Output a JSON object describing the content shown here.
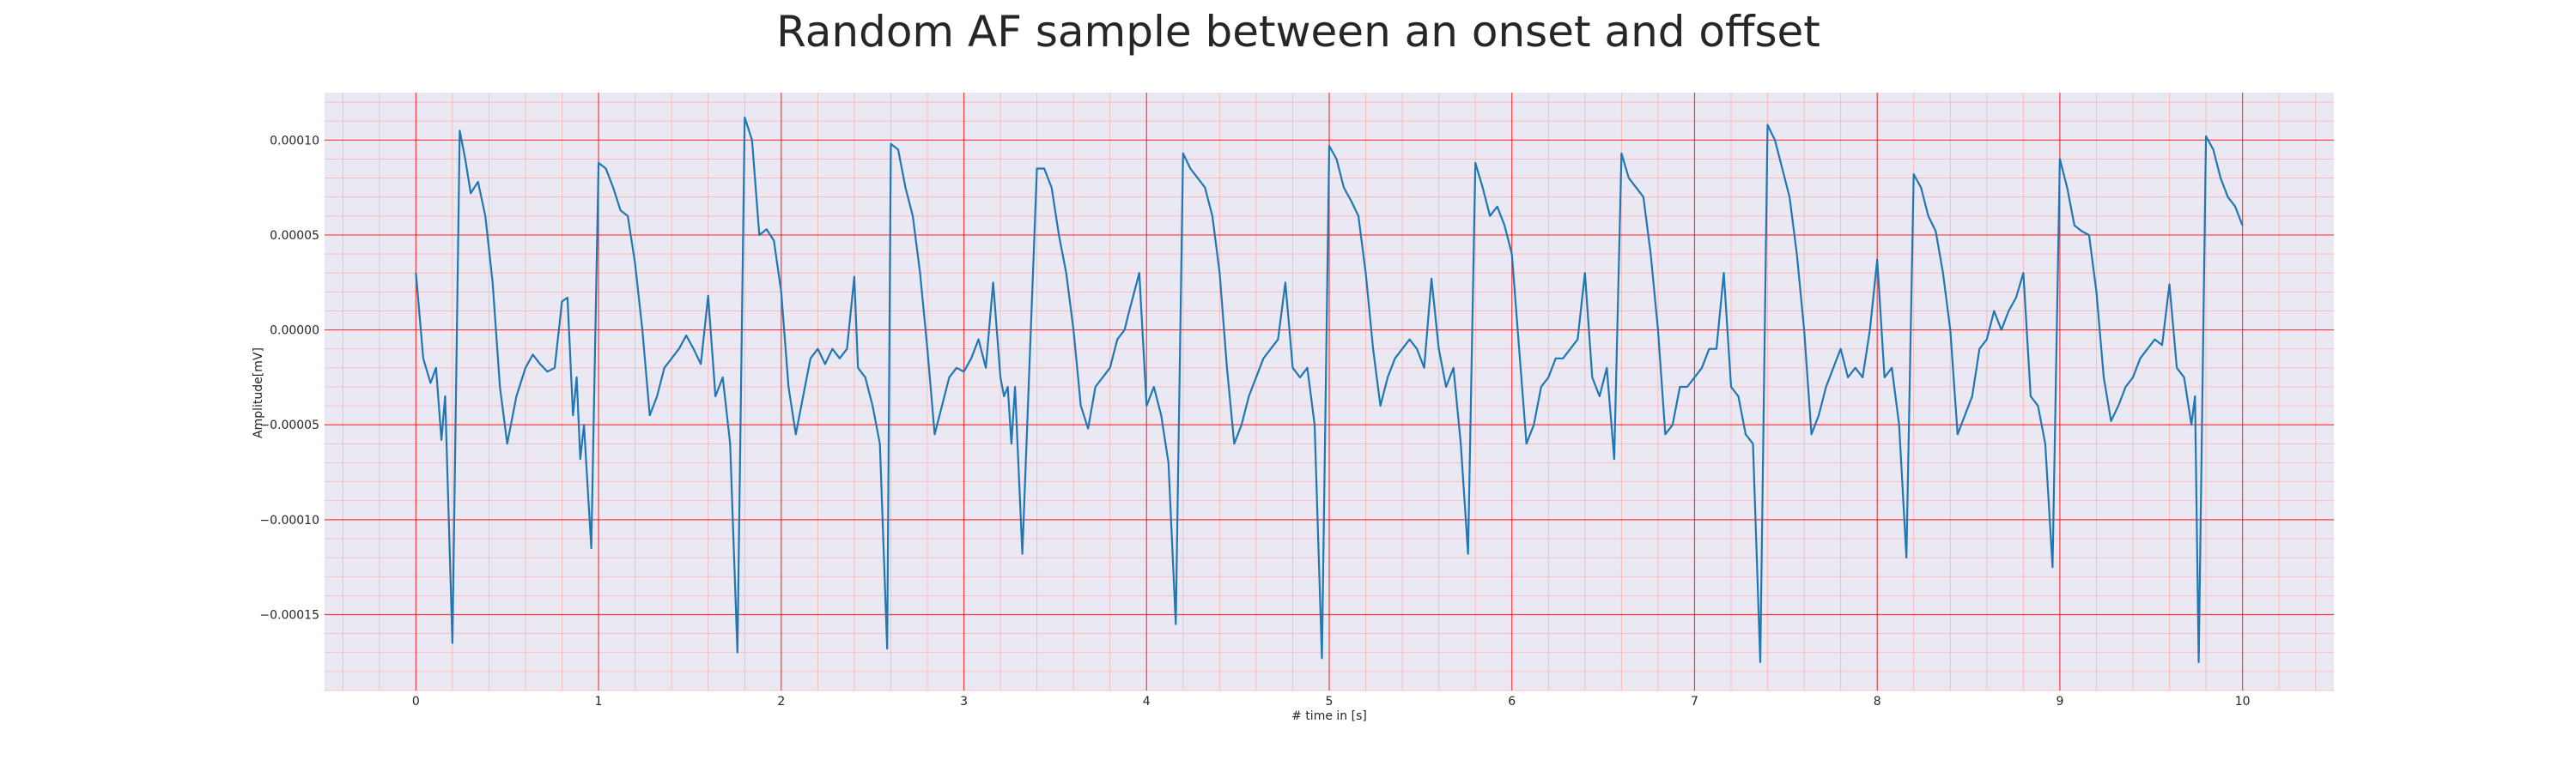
{
  "chart_data": {
    "type": "line",
    "title": "Random AF sample between an onset and offset",
    "xlabel": "# time in [s]",
    "ylabel": "Amplitude[mV]",
    "xlim": [
      -0.5,
      10.5
    ],
    "ylim": [
      -0.00019,
      0.000125
    ],
    "xticks": [
      0,
      1,
      2,
      3,
      4,
      5,
      6,
      7,
      8,
      9,
      10
    ],
    "xtick_labels": [
      "0",
      "1",
      "2",
      "3",
      "4",
      "5",
      "6",
      "7",
      "8",
      "9",
      "10"
    ],
    "yticks": [
      0.0001,
      5e-05,
      0,
      -5e-05,
      -0.0001,
      -0.00015
    ],
    "ytick_labels": [
      "0.00010",
      "0.00005",
      "0.00000",
      "−0.00005",
      "−0.00010",
      "−0.00015"
    ],
    "grid": true,
    "minor_grid": true,
    "colors": {
      "background": "#eae8f2",
      "major_grid": "#ff0000",
      "minor_grid": "#ffb3b3",
      "line": "#1f77b4"
    },
    "series": [
      {
        "points": [
          [
            0.0,
            3e-05
          ],
          [
            0.04,
            -1.5e-05
          ],
          [
            0.08,
            -2.8e-05
          ],
          [
            0.11,
            -2e-05
          ],
          [
            0.14,
            -5.8e-05
          ],
          [
            0.16,
            -3.5e-05
          ],
          [
            0.2,
            -0.000165
          ],
          [
            0.24,
            0.000105
          ],
          [
            0.27,
            9e-05
          ],
          [
            0.3,
            7.2e-05
          ],
          [
            0.34,
            7.8e-05
          ],
          [
            0.38,
            6e-05
          ],
          [
            0.42,
            2.5e-05
          ],
          [
            0.46,
            -3e-05
          ],
          [
            0.5,
            -6e-05
          ],
          [
            0.55,
            -3.5e-05
          ],
          [
            0.6,
            -2e-05
          ],
          [
            0.64,
            -1.3e-05
          ],
          [
            0.68,
            -1.8e-05
          ],
          [
            0.72,
            -2.2e-05
          ],
          [
            0.76,
            -2e-05
          ],
          [
            0.8,
            1.5e-05
          ],
          [
            0.83,
            1.7e-05
          ],
          [
            0.86,
            -4.5e-05
          ],
          [
            0.88,
            -2.5e-05
          ],
          [
            0.9,
            -6.8e-05
          ],
          [
            0.92,
            -5e-05
          ],
          [
            0.96,
            -0.000115
          ],
          [
            1.0,
            8.8e-05
          ],
          [
            1.04,
            8.5e-05
          ],
          [
            1.08,
            7.5e-05
          ],
          [
            1.12,
            6.3e-05
          ],
          [
            1.16,
            6e-05
          ],
          [
            1.2,
            3.5e-05
          ],
          [
            1.24,
            0.0
          ],
          [
            1.28,
            -4.5e-05
          ],
          [
            1.32,
            -3.5e-05
          ],
          [
            1.36,
            -2e-05
          ],
          [
            1.4,
            -1.5e-05
          ],
          [
            1.44,
            -1e-05
          ],
          [
            1.48,
            -3e-06
          ],
          [
            1.52,
            -1e-05
          ],
          [
            1.56,
            -1.8e-05
          ],
          [
            1.6,
            1.8e-05
          ],
          [
            1.64,
            -3.5e-05
          ],
          [
            1.68,
            -2.5e-05
          ],
          [
            1.72,
            -6e-05
          ],
          [
            1.76,
            -0.00017
          ],
          [
            1.8,
            0.000112
          ],
          [
            1.84,
            0.0001
          ],
          [
            1.88,
            5e-05
          ],
          [
            1.92,
            5.3e-05
          ],
          [
            1.96,
            4.7e-05
          ],
          [
            2.0,
            2e-05
          ],
          [
            2.04,
            -3e-05
          ],
          [
            2.08,
            -5.5e-05
          ],
          [
            2.12,
            -3.5e-05
          ],
          [
            2.16,
            -1.5e-05
          ],
          [
            2.2,
            -1e-05
          ],
          [
            2.24,
            -1.8e-05
          ],
          [
            2.28,
            -1e-05
          ],
          [
            2.32,
            -1.5e-05
          ],
          [
            2.36,
            -1e-05
          ],
          [
            2.4,
            2.8e-05
          ],
          [
            2.42,
            -2e-05
          ],
          [
            2.46,
            -2.5e-05
          ],
          [
            2.5,
            -4e-05
          ],
          [
            2.54,
            -6e-05
          ],
          [
            2.58,
            -0.000168
          ],
          [
            2.6,
            9.8e-05
          ],
          [
            2.64,
            9.5e-05
          ],
          [
            2.68,
            7.5e-05
          ],
          [
            2.72,
            6e-05
          ],
          [
            2.76,
            3e-05
          ],
          [
            2.8,
            -1e-05
          ],
          [
            2.84,
            -5.5e-05
          ],
          [
            2.88,
            -4e-05
          ],
          [
            2.92,
            -2.5e-05
          ],
          [
            2.96,
            -2e-05
          ],
          [
            3.0,
            -2.2e-05
          ],
          [
            3.04,
            -1.5e-05
          ],
          [
            3.08,
            -5e-06
          ],
          [
            3.12,
            -2e-05
          ],
          [
            3.16,
            2.5e-05
          ],
          [
            3.2,
            -2.5e-05
          ],
          [
            3.22,
            -3.5e-05
          ],
          [
            3.24,
            -3e-05
          ],
          [
            3.26,
            -6e-05
          ],
          [
            3.28,
            -3e-05
          ],
          [
            3.32,
            -0.000118
          ],
          [
            3.4,
            8.5e-05
          ],
          [
            3.44,
            8.5e-05
          ],
          [
            3.48,
            7.5e-05
          ],
          [
            3.52,
            5e-05
          ],
          [
            3.56,
            3e-05
          ],
          [
            3.6,
            0.0
          ],
          [
            3.64,
            -4e-05
          ],
          [
            3.68,
            -5.2e-05
          ],
          [
            3.72,
            -3e-05
          ],
          [
            3.76,
            -2.5e-05
          ],
          [
            3.8,
            -2e-05
          ],
          [
            3.84,
            -5e-06
          ],
          [
            3.88,
            0.0
          ],
          [
            3.9,
            8e-06
          ],
          [
            3.96,
            3e-05
          ],
          [
            4.0,
            -4e-05
          ],
          [
            4.04,
            -3e-05
          ],
          [
            4.08,
            -4.5e-05
          ],
          [
            4.12,
            -7e-05
          ],
          [
            4.16,
            -0.000155
          ],
          [
            4.2,
            9.3e-05
          ],
          [
            4.24,
            8.5e-05
          ],
          [
            4.28,
            8e-05
          ],
          [
            4.32,
            7.5e-05
          ],
          [
            4.36,
            6e-05
          ],
          [
            4.4,
            3e-05
          ],
          [
            4.44,
            -2e-05
          ],
          [
            4.48,
            -6e-05
          ],
          [
            4.52,
            -5e-05
          ],
          [
            4.56,
            -3.5e-05
          ],
          [
            4.6,
            -2.5e-05
          ],
          [
            4.64,
            -1.5e-05
          ],
          [
            4.68,
            -1e-05
          ],
          [
            4.72,
            -5e-06
          ],
          [
            4.76,
            2.5e-05
          ],
          [
            4.8,
            -2e-05
          ],
          [
            4.84,
            -2.5e-05
          ],
          [
            4.88,
            -2e-05
          ],
          [
            4.92,
            -5e-05
          ],
          [
            4.96,
            -0.000173
          ],
          [
            5.0,
            9.7e-05
          ],
          [
            5.04,
            9e-05
          ],
          [
            5.08,
            7.5e-05
          ],
          [
            5.12,
            6.8e-05
          ],
          [
            5.16,
            6e-05
          ],
          [
            5.2,
            3e-05
          ],
          [
            5.24,
            -1e-05
          ],
          [
            5.28,
            -4e-05
          ],
          [
            5.32,
            -2.5e-05
          ],
          [
            5.36,
            -1.5e-05
          ],
          [
            5.4,
            -1e-05
          ],
          [
            5.44,
            -5e-06
          ],
          [
            5.48,
            -1e-05
          ],
          [
            5.52,
            -2e-05
          ],
          [
            5.56,
            2.7e-05
          ],
          [
            5.6,
            -1e-05
          ],
          [
            5.64,
            -3e-05
          ],
          [
            5.68,
            -2e-05
          ],
          [
            5.72,
            -6e-05
          ],
          [
            5.76,
            -0.000118
          ],
          [
            5.8,
            8.8e-05
          ],
          [
            5.84,
            7.5e-05
          ],
          [
            5.88,
            6e-05
          ],
          [
            5.92,
            6.5e-05
          ],
          [
            5.96,
            5.5e-05
          ],
          [
            6.0,
            4e-05
          ],
          [
            6.04,
            -1e-05
          ],
          [
            6.08,
            -6e-05
          ],
          [
            6.12,
            -5e-05
          ],
          [
            6.16,
            -3e-05
          ],
          [
            6.2,
            -2.5e-05
          ],
          [
            6.24,
            -1.5e-05
          ],
          [
            6.28,
            -1.5e-05
          ],
          [
            6.32,
            -1e-05
          ],
          [
            6.36,
            -5e-06
          ],
          [
            6.4,
            3e-05
          ],
          [
            6.44,
            -2.5e-05
          ],
          [
            6.48,
            -3.5e-05
          ],
          [
            6.52,
            -2e-05
          ],
          [
            6.56,
            -6.8e-05
          ],
          [
            6.6,
            9.3e-05
          ],
          [
            6.64,
            8e-05
          ],
          [
            6.68,
            7.5e-05
          ],
          [
            6.72,
            7e-05
          ],
          [
            6.76,
            4e-05
          ],
          [
            6.8,
            0.0
          ],
          [
            6.84,
            -5.5e-05
          ],
          [
            6.88,
            -5e-05
          ],
          [
            6.92,
            -3e-05
          ],
          [
            6.96,
            -3e-05
          ],
          [
            7.0,
            -2.5e-05
          ],
          [
            7.04,
            -2e-05
          ],
          [
            7.08,
            -1e-05
          ],
          [
            7.12,
            -1e-05
          ],
          [
            7.16,
            3e-05
          ],
          [
            7.2,
            -3e-05
          ],
          [
            7.24,
            -3.5e-05
          ],
          [
            7.28,
            -5.5e-05
          ],
          [
            7.32,
            -6e-05
          ],
          [
            7.36,
            -0.000175
          ],
          [
            7.4,
            0.000108
          ],
          [
            7.44,
            0.0001
          ],
          [
            7.48,
            8.5e-05
          ],
          [
            7.52,
            7e-05
          ],
          [
            7.56,
            4e-05
          ],
          [
            7.6,
            0.0
          ],
          [
            7.64,
            -5.5e-05
          ],
          [
            7.68,
            -4.5e-05
          ],
          [
            7.72,
            -3e-05
          ],
          [
            7.76,
            -2e-05
          ],
          [
            7.8,
            -1e-05
          ],
          [
            7.84,
            -2.5e-05
          ],
          [
            7.88,
            -2e-05
          ],
          [
            7.92,
            -2.5e-05
          ],
          [
            7.96,
            0.0
          ],
          [
            8.0,
            3.7e-05
          ],
          [
            8.04,
            -2.5e-05
          ],
          [
            8.08,
            -2e-05
          ],
          [
            8.12,
            -5e-05
          ],
          [
            8.16,
            -0.00012
          ],
          [
            8.2,
            8.2e-05
          ],
          [
            8.24,
            7.5e-05
          ],
          [
            8.28,
            6e-05
          ],
          [
            8.32,
            5.2e-05
          ],
          [
            8.36,
            3e-05
          ],
          [
            8.4,
            0.0
          ],
          [
            8.44,
            -5.5e-05
          ],
          [
            8.48,
            -4.5e-05
          ],
          [
            8.52,
            -3.5e-05
          ],
          [
            8.56,
            -1e-05
          ],
          [
            8.6,
            -5e-06
          ],
          [
            8.64,
            1e-05
          ],
          [
            8.68,
            0.0
          ],
          [
            8.72,
            1e-05
          ],
          [
            8.76,
            1.7e-05
          ],
          [
            8.8,
            3e-05
          ],
          [
            8.84,
            -3.5e-05
          ],
          [
            8.88,
            -4e-05
          ],
          [
            8.92,
            -6e-05
          ],
          [
            8.96,
            -0.000125
          ],
          [
            9.0,
            9e-05
          ],
          [
            9.04,
            7.5e-05
          ],
          [
            9.08,
            5.5e-05
          ],
          [
            9.12,
            5.2e-05
          ],
          [
            9.16,
            5e-05
          ],
          [
            9.2,
            2e-05
          ],
          [
            9.24,
            -2.5e-05
          ],
          [
            9.28,
            -4.8e-05
          ],
          [
            9.32,
            -4e-05
          ],
          [
            9.36,
            -3e-05
          ],
          [
            9.4,
            -2.5e-05
          ],
          [
            9.44,
            -1.5e-05
          ],
          [
            9.48,
            -1e-05
          ],
          [
            9.52,
            -5e-06
          ],
          [
            9.56,
            -8e-06
          ],
          [
            9.6,
            2.4e-05
          ],
          [
            9.64,
            -2e-05
          ],
          [
            9.68,
            -2.5e-05
          ],
          [
            9.72,
            -5e-05
          ],
          [
            9.74,
            -3.5e-05
          ],
          [
            9.76,
            -0.000175
          ],
          [
            9.8,
            0.000102
          ],
          [
            9.84,
            9.5e-05
          ],
          [
            9.88,
            8e-05
          ],
          [
            9.92,
            7e-05
          ],
          [
            9.96,
            6.5e-05
          ],
          [
            10.0,
            5.5e-05
          ]
        ]
      }
    ]
  }
}
